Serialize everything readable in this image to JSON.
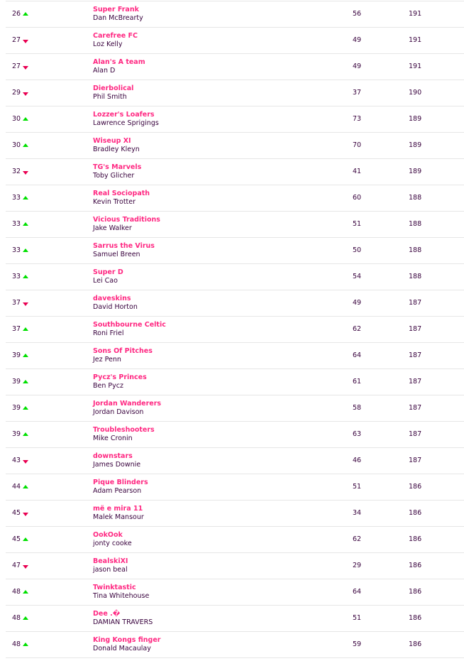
{
  "colors": {
    "team_name": "#ff2882",
    "text": "#37003c",
    "up": "#00e000",
    "down": "#e90052"
  },
  "rows": [
    {
      "rank": "26",
      "movement": "up",
      "team": "Super Frank",
      "manager": "Dan McBrearty",
      "gw": "56",
      "total": "191"
    },
    {
      "rank": "27",
      "movement": "down",
      "team": "Carefree FC",
      "manager": "Loz Kelly",
      "gw": "49",
      "total": "191"
    },
    {
      "rank": "27",
      "movement": "down",
      "team": "Alan's A team",
      "manager": "Alan D",
      "gw": "49",
      "total": "191"
    },
    {
      "rank": "29",
      "movement": "down",
      "team": "Dierbolical",
      "manager": "Phil Smith",
      "gw": "37",
      "total": "190"
    },
    {
      "rank": "30",
      "movement": "up",
      "team": "Lozzer's Loafers",
      "manager": "Lawrence Sprigings",
      "gw": "73",
      "total": "189"
    },
    {
      "rank": "30",
      "movement": "up",
      "team": "Wiseup XI",
      "manager": "Bradley Kleyn",
      "gw": "70",
      "total": "189"
    },
    {
      "rank": "32",
      "movement": "down",
      "team": "TG's Marvels",
      "manager": "Toby Glicher",
      "gw": "41",
      "total": "189"
    },
    {
      "rank": "33",
      "movement": "up",
      "team": "Real Sociopath",
      "manager": "Kevin Trotter",
      "gw": "60",
      "total": "188"
    },
    {
      "rank": "33",
      "movement": "up",
      "team": "Vicious Traditions",
      "manager": "Jake Walker",
      "gw": "51",
      "total": "188"
    },
    {
      "rank": "33",
      "movement": "up",
      "team": "Sarrus the Virus",
      "manager": "Samuel Breen",
      "gw": "50",
      "total": "188"
    },
    {
      "rank": "33",
      "movement": "up",
      "team": "Super D",
      "manager": "Lei Cao",
      "gw": "54",
      "total": "188"
    },
    {
      "rank": "37",
      "movement": "down",
      "team": "daveskins",
      "manager": "David Horton",
      "gw": "49",
      "total": "187"
    },
    {
      "rank": "37",
      "movement": "up",
      "team": "Southbourne Celtic",
      "manager": "Roni Friel",
      "gw": "62",
      "total": "187"
    },
    {
      "rank": "39",
      "movement": "up",
      "team": "Sons Of Pitches",
      "manager": "Jez Penn",
      "gw": "64",
      "total": "187"
    },
    {
      "rank": "39",
      "movement": "up",
      "team": "Pycz's Princes",
      "manager": "Ben Pycz",
      "gw": "61",
      "total": "187"
    },
    {
      "rank": "39",
      "movement": "up",
      "team": "Jordan Wanderers",
      "manager": "Jordan Davison",
      "gw": "58",
      "total": "187"
    },
    {
      "rank": "39",
      "movement": "up",
      "team": "Troubleshooters",
      "manager": "Mike Cronin",
      "gw": "63",
      "total": "187"
    },
    {
      "rank": "43",
      "movement": "down",
      "team": "downstars",
      "manager": "James Downie",
      "gw": "46",
      "total": "187"
    },
    {
      "rank": "44",
      "movement": "up",
      "team": "Pique Blinders",
      "manager": "Adam Pearson",
      "gw": "51",
      "total": "186"
    },
    {
      "rank": "45",
      "movement": "down",
      "team": "më e mira 11",
      "manager": "Malek Mansour",
      "gw": "34",
      "total": "186"
    },
    {
      "rank": "45",
      "movement": "up",
      "team": "OokOok",
      "manager": "jonty cooke",
      "gw": "62",
      "total": "186"
    },
    {
      "rank": "47",
      "movement": "down",
      "team": "BealskiXI",
      "manager": "jason beal",
      "gw": "29",
      "total": "186"
    },
    {
      "rank": "48",
      "movement": "up",
      "team": "Twinktastic",
      "manager": "Tina Whitehouse",
      "gw": "64",
      "total": "186"
    },
    {
      "rank": "48",
      "movement": "up",
      "team": "Dee .�",
      "manager": "DAMIAN TRAVERS",
      "gw": "51",
      "total": "186"
    },
    {
      "rank": "48",
      "movement": "up",
      "team": "King Kongs finger",
      "manager": "Donald Macaulay",
      "gw": "59",
      "total": "186"
    }
  ]
}
